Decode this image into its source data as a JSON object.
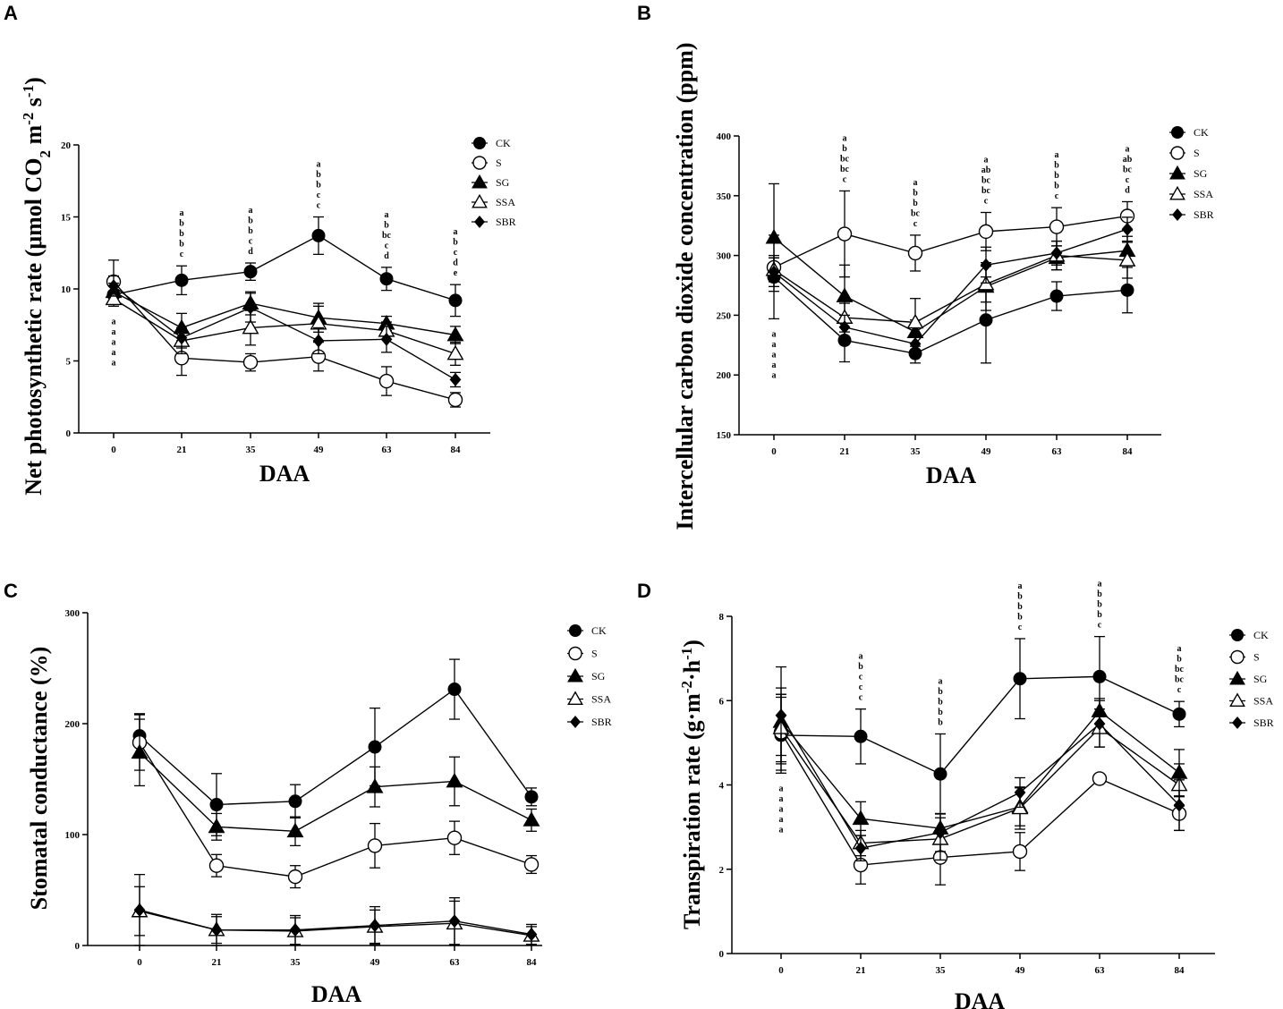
{
  "chart_data": [
    {
      "panel": "A",
      "type": "line",
      "title": "",
      "xlabel": "DAA",
      "ylabel_parts": [
        "Net photosynthetic rate (μmol CO",
        "2",
        " m",
        "-2",
        " s",
        "-1",
        ")"
      ],
      "categories": [
        "0",
        "21",
        "35",
        "49",
        "63",
        "84"
      ],
      "ylim": [
        0,
        20
      ],
      "yticks": [
        0,
        5,
        10,
        15,
        20
      ],
      "legend": "top-right",
      "series": [
        {
          "name": "CK",
          "marker": "circle-filled",
          "values": [
            9.6,
            10.6,
            11.2,
            13.7,
            10.7,
            9.2
          ],
          "errors": [
            0.6,
            1.0,
            0.6,
            1.3,
            0.8,
            1.1
          ]
        },
        {
          "name": "S",
          "marker": "circle-open",
          "values": [
            10.5,
            5.2,
            4.9,
            5.3,
            3.6,
            2.3
          ],
          "errors": [
            1.5,
            1.2,
            0.6,
            1.0,
            1.0,
            0.5
          ]
        },
        {
          "name": "SG",
          "marker": "triangle-filled",
          "values": [
            9.8,
            7.3,
            9.0,
            8.0,
            7.6,
            6.8
          ],
          "errors": [
            0.6,
            1.0,
            0.8,
            1.0,
            0.5,
            0.6
          ]
        },
        {
          "name": "SSA",
          "marker": "triangle-open",
          "values": [
            9.3,
            6.4,
            7.3,
            7.6,
            7.1,
            5.5
          ],
          "errors": [
            0.5,
            0.9,
            1.2,
            1.2,
            0.6,
            0.8
          ]
        },
        {
          "name": "SBR",
          "marker": "diamond-filled",
          "values": [
            10.2,
            6.6,
            8.7,
            6.4,
            6.5,
            3.7
          ],
          "errors": [
            0.7,
            0.7,
            1.0,
            0.9,
            0.9,
            0.5
          ]
        }
      ],
      "annotations": [
        {
          "category": "0",
          "position": "below",
          "letters": [
            "a",
            "a",
            "a",
            "a",
            "a"
          ]
        },
        {
          "category": "21",
          "position": "above",
          "letters": [
            "a",
            "b",
            "b",
            "b",
            "c"
          ]
        },
        {
          "category": "35",
          "position": "above",
          "letters": [
            "a",
            "b",
            "b",
            "c",
            "d"
          ]
        },
        {
          "category": "49",
          "position": "above",
          "letters": [
            "a",
            "b",
            "b",
            "c",
            "c"
          ]
        },
        {
          "category": "63",
          "position": "above",
          "letters": [
            "a",
            "b",
            "bc",
            "c",
            "d"
          ]
        },
        {
          "category": "84",
          "position": "above",
          "letters": [
            "a",
            "b",
            "c",
            "d",
            "e"
          ]
        }
      ]
    },
    {
      "panel": "B",
      "type": "line",
      "title": "",
      "xlabel": "DAA",
      "ylabel_parts": [
        "Intercellular carbon dioxide concentration (ppm)"
      ],
      "categories": [
        "0",
        "21",
        "35",
        "49",
        "63",
        "84"
      ],
      "ylim": [
        150,
        400
      ],
      "yticks": [
        150,
        200,
        250,
        300,
        350,
        400
      ],
      "legend": "top-right",
      "series": [
        {
          "name": "CK",
          "marker": "circle-filled",
          "values": [
            282,
            229,
            218,
            246,
            266,
            271
          ],
          "errors": [
            35,
            18,
            8,
            36,
            12,
            19
          ]
        },
        {
          "name": "S",
          "marker": "circle-open",
          "values": [
            290,
            318,
            302,
            320,
            324,
            333
          ],
          "errors": [
            10,
            36,
            15,
            16,
            16,
            12
          ]
        },
        {
          "name": "SG",
          "marker": "triangle-filled",
          "values": [
            315,
            266,
            236,
            274,
            298,
            304
          ],
          "errors": [
            45,
            26,
            10,
            20,
            10,
            12
          ]
        },
        {
          "name": "SSA",
          "marker": "triangle-open",
          "values": [
            288,
            248,
            244,
            276,
            300,
            296
          ],
          "errors": [
            10,
            12,
            20,
            15,
            12,
            15
          ]
        },
        {
          "name": "SBR",
          "marker": "diamond-filled",
          "values": [
            286,
            240,
            226,
            292,
            302,
            322
          ],
          "errors": [
            12,
            10,
            8,
            15,
            10,
            10
          ]
        }
      ],
      "annotations": [
        {
          "category": "0",
          "position": "below",
          "letters": [
            "a",
            "a",
            "a",
            "a",
            "a"
          ]
        },
        {
          "category": "21",
          "position": "above",
          "letters": [
            "a",
            "b",
            "bc",
            "bc",
            "c"
          ]
        },
        {
          "category": "35",
          "position": "above",
          "letters": [
            "a",
            "b",
            "b",
            "bc",
            "c"
          ]
        },
        {
          "category": "49",
          "position": "above",
          "letters": [
            "a",
            "ab",
            "bc",
            "bc",
            "c"
          ]
        },
        {
          "category": "63",
          "position": "above",
          "letters": [
            "a",
            "b",
            "b",
            "b",
            "c"
          ]
        },
        {
          "category": "84",
          "position": "above",
          "letters": [
            "a",
            "ab",
            "bc",
            "c",
            "d"
          ]
        }
      ]
    },
    {
      "panel": "C",
      "type": "line",
      "title": "",
      "xlabel": "DAA",
      "ylabel_parts": [
        "Stomatal conductance (%)"
      ],
      "categories": [
        "0",
        "21",
        "35",
        "49",
        "63",
        "84"
      ],
      "ylim": [
        0,
        300
      ],
      "yticks": [
        0,
        100,
        200,
        300
      ],
      "legend": "top-right",
      "series": [
        {
          "name": "CK",
          "marker": "circle-filled",
          "values": [
            189,
            127,
            130,
            179,
            231,
            134
          ],
          "errors": [
            20,
            28,
            15,
            35,
            27,
            8
          ]
        },
        {
          "name": "S",
          "marker": "circle-open",
          "values": [
            183,
            72,
            62,
            90,
            97,
            73
          ],
          "errors": [
            25,
            10,
            10,
            20,
            15,
            8
          ]
        },
        {
          "name": "SG",
          "marker": "triangle-filled",
          "values": [
            174,
            107,
            103,
            143,
            148,
            113
          ],
          "errors": [
            30,
            12,
            13,
            18,
            22,
            10
          ]
        },
        {
          "name": "SSA",
          "marker": "triangle-open",
          "values": [
            31,
            14,
            13,
            17,
            20,
            9
          ],
          "errors": [
            22,
            12,
            12,
            15,
            20,
            8
          ]
        },
        {
          "name": "SBR",
          "marker": "diamond-filled",
          "values": [
            32,
            14,
            14,
            18,
            22,
            10
          ],
          "errors": [
            32,
            14,
            13,
            17,
            21,
            9
          ]
        }
      ],
      "annotations": []
    },
    {
      "panel": "D",
      "type": "line",
      "title": "",
      "xlabel": "DAA",
      "ylabel_parts": [
        "Transpiration rate (g·m",
        "-2",
        "·h",
        "-1",
        ")"
      ],
      "categories": [
        "0",
        "21",
        "35",
        "49",
        "63",
        "84"
      ],
      "ylim": [
        0,
        8
      ],
      "yticks": [
        0,
        2,
        4,
        6,
        8
      ],
      "legend": "top-right",
      "series": [
        {
          "name": "CK",
          "marker": "circle-filled",
          "values": [
            5.18,
            5.15,
            4.26,
            6.52,
            6.57,
            5.68
          ],
          "errors": [
            0.9,
            0.65,
            0.95,
            0.95,
            0.95,
            0.3
          ]
        },
        {
          "name": "S",
          "marker": "circle-open",
          "values": [
            5.25,
            2.1,
            2.28,
            2.42,
            4.15,
            3.32
          ],
          "errors": [
            0.9,
            0.45,
            0.65,
            0.45,
            0.0,
            0.4
          ]
        },
        {
          "name": "SG",
          "marker": "triangle-filled",
          "values": [
            5.5,
            3.2,
            2.97,
            3.48,
            5.75,
            4.29
          ],
          "errors": [
            0.8,
            0.4,
            0.35,
            0.45,
            0.3,
            0.55
          ]
        },
        {
          "name": "SSA",
          "marker": "triangle-open",
          "values": [
            5.35,
            2.62,
            2.72,
            3.45,
            5.35,
            4.0
          ],
          "errors": [
            0.8,
            0.3,
            0.5,
            0.5,
            0.45,
            0.5
          ]
        },
        {
          "name": "SBR",
          "marker": "diamond-filled",
          "values": [
            5.65,
            2.5,
            2.87,
            3.82,
            5.45,
            3.52
          ],
          "errors": [
            1.15,
            0.3,
            0.45,
            0.35,
            0.55,
            0.6
          ]
        }
      ],
      "annotations": [
        {
          "category": "0",
          "position": "below",
          "letters": [
            "a",
            "a",
            "a",
            "a",
            "a"
          ]
        },
        {
          "category": "21",
          "position": "above",
          "letters": [
            "a",
            "b",
            "c",
            "c",
            "c"
          ]
        },
        {
          "category": "35",
          "position": "above",
          "letters": [
            "a",
            "b",
            "b",
            "b",
            "b"
          ]
        },
        {
          "category": "49",
          "position": "above",
          "letters": [
            "a",
            "b",
            "b",
            "b",
            "c"
          ]
        },
        {
          "category": "63",
          "position": "above",
          "letters": [
            "a",
            "b",
            "b",
            "b",
            "c"
          ]
        },
        {
          "category": "84",
          "position": "above",
          "letters": [
            "a",
            "b",
            "bc",
            "bc",
            "c"
          ]
        }
      ]
    }
  ]
}
